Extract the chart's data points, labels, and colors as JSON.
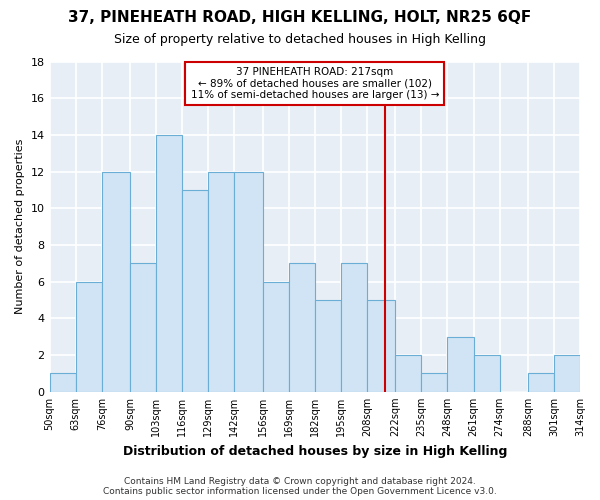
{
  "title": "37, PINEHEATH ROAD, HIGH KELLING, HOLT, NR25 6QF",
  "subtitle": "Size of property relative to detached houses in High Kelling",
  "xlabel": "Distribution of detached houses by size in High Kelling",
  "ylabel": "Number of detached properties",
  "footnote1": "Contains HM Land Registry data © Crown copyright and database right 2024.",
  "footnote2": "Contains public sector information licensed under the Open Government Licence v3.0.",
  "bin_edges": [
    50,
    63,
    76,
    90,
    103,
    116,
    129,
    142,
    156,
    169,
    182,
    195,
    208,
    222,
    235,
    248,
    261,
    274,
    288,
    301,
    314
  ],
  "bar_heights": [
    1,
    6,
    12,
    7,
    14,
    11,
    12,
    12,
    6,
    7,
    5,
    7,
    5,
    2,
    1,
    3,
    2,
    0,
    1,
    2
  ],
  "bar_color": "#d0e4f5",
  "bar_edge_color": "#6aaed6",
  "property_size": 217,
  "vline_color": "#cc0000",
  "annotation_title": "37 PINEHEATH ROAD: 217sqm",
  "annotation_line1": "← 89% of detached houses are smaller (102)",
  "annotation_line2": "11% of semi-detached houses are larger (13) →",
  "annotation_bg": "#ffffff",
  "ylim_max": 18,
  "yticks": [
    0,
    2,
    4,
    6,
    8,
    10,
    12,
    14,
    16,
    18
  ],
  "tick_labels": [
    "50sqm",
    "63sqm",
    "76sqm",
    "90sqm",
    "103sqm",
    "116sqm",
    "129sqm",
    "142sqm",
    "156sqm",
    "169sqm",
    "182sqm",
    "195sqm",
    "208sqm",
    "222sqm",
    "235sqm",
    "248sqm",
    "261sqm",
    "274sqm",
    "288sqm",
    "301sqm",
    "314sqm"
  ],
  "fig_bg": "#ffffff",
  "plot_bg": "#e8eef5",
  "grid_color": "#ffffff",
  "title_fontsize": 11,
  "subtitle_fontsize": 9,
  "xlabel_fontsize": 9,
  "ylabel_fontsize": 8,
  "footnote_fontsize": 6.5
}
